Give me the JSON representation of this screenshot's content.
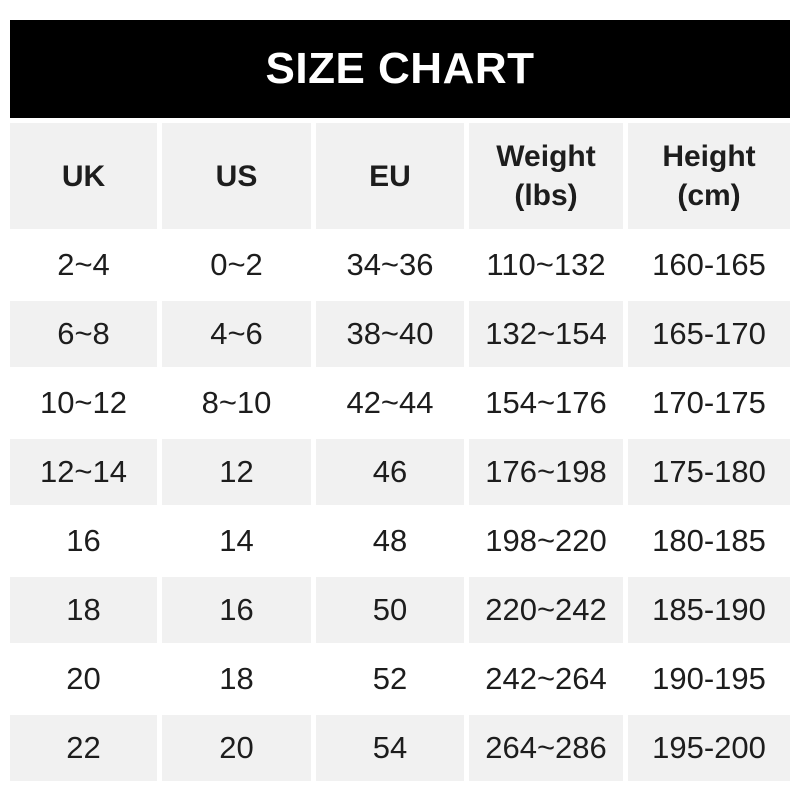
{
  "title": "SIZE CHART",
  "colors": {
    "page_bg": "#ffffff",
    "banner_bg": "#000000",
    "banner_text": "#ffffff",
    "cell_bg": "#f1f1f1",
    "text": "#1d1d1d"
  },
  "chart_data": {
    "type": "table",
    "title": "SIZE CHART",
    "columns": [
      {
        "label": "UK",
        "sub": ""
      },
      {
        "label": "US",
        "sub": ""
      },
      {
        "label": "EU",
        "sub": ""
      },
      {
        "label": "Weight",
        "sub": "(lbs)"
      },
      {
        "label": "Height",
        "sub": "(cm)"
      }
    ],
    "rows": [
      [
        "2~4",
        "0~2",
        "34~36",
        "110~132",
        "160-165"
      ],
      [
        "6~8",
        "4~6",
        "38~40",
        "132~154",
        "165-170"
      ],
      [
        "10~12",
        "8~10",
        "42~44",
        "154~176",
        "170-175"
      ],
      [
        "12~14",
        "12",
        "46",
        "176~198",
        "175-180"
      ],
      [
        "16",
        "14",
        "48",
        "198~220",
        "180-185"
      ],
      [
        "18",
        "16",
        "50",
        "220~242",
        "185-190"
      ],
      [
        "20",
        "18",
        "52",
        "242~264",
        "190-195"
      ],
      [
        "22",
        "20",
        "54",
        "264~286",
        "195-200"
      ]
    ]
  }
}
